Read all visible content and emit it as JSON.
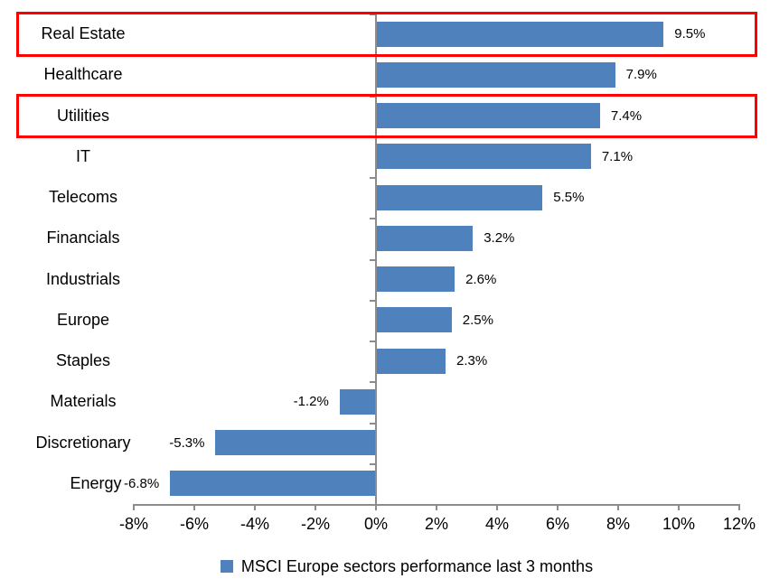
{
  "chart_data": {
    "type": "bar",
    "orientation": "horizontal",
    "title": "",
    "categories": [
      "Real Estate",
      "Healthcare",
      "Utilities",
      "IT",
      "Telecoms",
      "Financials",
      "Industrials",
      "Europe",
      "Staples",
      "Materials",
      "Discretionary",
      "Energy"
    ],
    "values": [
      9.5,
      7.9,
      7.4,
      7.1,
      5.5,
      3.2,
      2.6,
      2.5,
      2.3,
      -1.2,
      -5.3,
      -6.8
    ],
    "data_labels": [
      "9.5%",
      "7.9%",
      "7.4%",
      "7.1%",
      "5.5%",
      "3.2%",
      "2.6%",
      "2.5%",
      "2.3%",
      "-1.2%",
      "-5.3%",
      "-6.8%"
    ],
    "highlighted_categories": [
      "Real Estate",
      "Utilities"
    ],
    "x_axis": {
      "min": -8,
      "max": 12,
      "step": 2,
      "tick_labels": [
        "-8%",
        "-6%",
        "-4%",
        "-2%",
        "0%",
        "2%",
        "4%",
        "6%",
        "8%",
        "10%",
        "12%"
      ]
    },
    "legend": {
      "label": "MSCI Europe sectors performance last 3 months",
      "marker": "square",
      "position": "bottom"
    },
    "gridlines": false,
    "colors": {
      "bar": "#4F81BD",
      "highlight_box": "#FF0000",
      "axis": "#8C8C8C",
      "text": "#000000",
      "background": "#FFFFFF"
    }
  }
}
